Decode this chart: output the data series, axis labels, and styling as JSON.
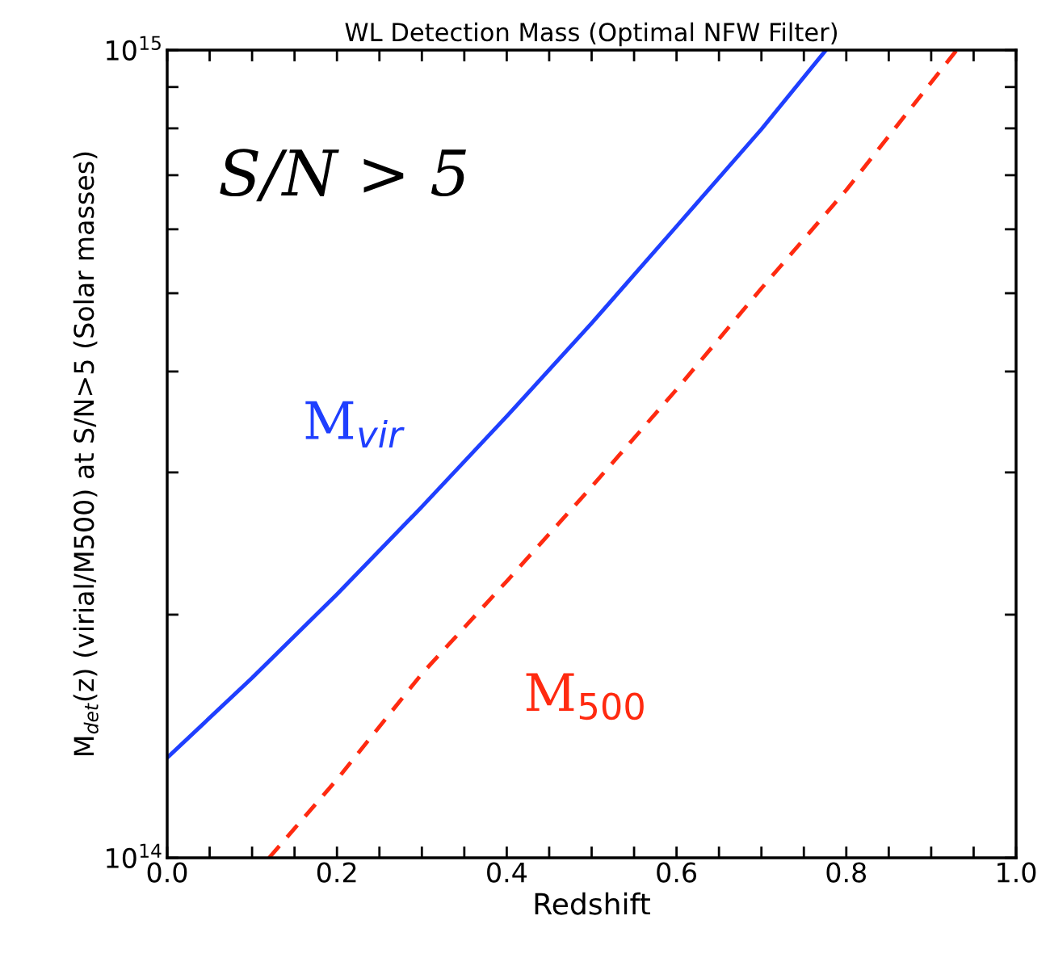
{
  "chart_data": {
    "type": "line",
    "title": "WL Detection Mass (Optimal NFW Filter)",
    "xlabel": "Redshift",
    "ylabel": "M$_{det}$(z) (virial/M500) at S/N>5 (Solar masses)",
    "annotations": [
      "S/N > 5"
    ],
    "log": "y",
    "grid": false,
    "legend": false,
    "xlim": [
      0,
      1
    ],
    "ylim": [
      100000000000000.0,
      1000000000000000.0
    ],
    "xticks": [
      {
        "value": 0,
        "label": "0.0"
      },
      {
        "value": 0.05,
        "label": null
      },
      {
        "value": 0.1,
        "label": null
      },
      {
        "value": 0.15,
        "label": null
      },
      {
        "value": 0.2,
        "label": "0.2"
      },
      {
        "value": 0.25,
        "label": null
      },
      {
        "value": 0.3,
        "label": null
      },
      {
        "value": 0.35,
        "label": null
      },
      {
        "value": 0.4,
        "label": "0.4"
      },
      {
        "value": 0.45,
        "label": null
      },
      {
        "value": 0.5,
        "label": null
      },
      {
        "value": 0.55,
        "label": null
      },
      {
        "value": 0.6,
        "label": "0.6"
      },
      {
        "value": 0.65,
        "label": null
      },
      {
        "value": 0.7,
        "label": null
      },
      {
        "value": 0.75,
        "label": null
      },
      {
        "value": 0.8,
        "label": "0.8"
      },
      {
        "value": 0.85,
        "label": null
      },
      {
        "value": 0.9,
        "label": null
      },
      {
        "value": 0.95,
        "label": null
      },
      {
        "value": 1.0,
        "label": "1.0"
      }
    ],
    "yticks": [
      {
        "value": 100000000000000.0,
        "label": "10$^{14}$"
      },
      {
        "value": 200000000000000.0,
        "label": null
      },
      {
        "value": 300000000000000.0,
        "label": null
      },
      {
        "value": 400000000000000.0,
        "label": null
      },
      {
        "value": 500000000000000.0,
        "label": null
      },
      {
        "value": 600000000000000.0,
        "label": null
      },
      {
        "value": 700000000000000.0,
        "label": null
      },
      {
        "value": 800000000000000.0,
        "label": null
      },
      {
        "value": 900000000000000.0,
        "label": null
      },
      {
        "value": 1000000000000000.0,
        "label": "10$^{15}$"
      }
    ],
    "series": [
      {
        "name": "M$_{vir}$",
        "color": "#1f3fff",
        "line_style": "solid",
        "x": [
          0,
          0.1,
          0.2,
          0.3,
          0.4,
          0.5,
          0.6,
          0.7,
          0.776
        ],
        "values": [
          133000000000000.0,
          167000000000000.0,
          212000000000000.0,
          272000000000000.0,
          352000000000000.0,
          459000000000000.0,
          605000000000000.0,
          798000000000000.0,
          1000000000000000.0
        ]
      },
      {
        "name": "M$_{500}$",
        "color": "#ff2a10",
        "line_style": "dashed",
        "x": [
          0.12,
          0.2,
          0.3,
          0.4,
          0.5,
          0.6,
          0.7,
          0.8,
          0.93
        ],
        "values": [
          100000000000000.0,
          125000000000000.0,
          169000000000000.0,
          220000000000000.0,
          288000000000000.0,
          380000000000000.0,
          507000000000000.0,
          671000000000000.0,
          1000000000000000.0
        ]
      }
    ]
  }
}
